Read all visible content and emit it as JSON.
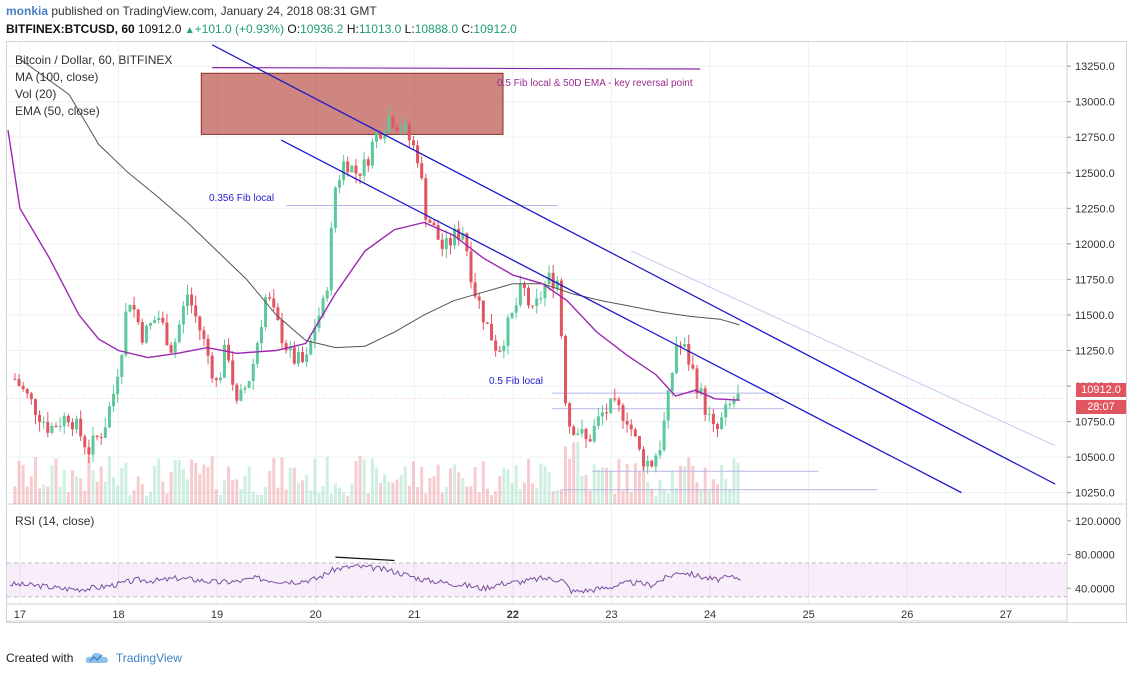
{
  "header": {
    "user": "monkia",
    "published_text": "published on TradingView.com, January 24, 2018 08:31 GMT",
    "symbol": "BITFINEX:BTCUSD, 60",
    "last": "10912.0",
    "change": "+101.0 (+0.93%)",
    "o_label": "O:",
    "o_value": "10936.2",
    "h_label": "H:",
    "h_value": "11013.0",
    "l_label": "L:",
    "l_value": "10888.0",
    "c_label": "C:",
    "c_value": "10912.0"
  },
  "legend": {
    "title": "Bitcoin / Dollar, 60, BITFINEX",
    "ma": "MA (100, close)",
    "vol": "Vol (20)",
    "ema": "EMA (50, close)",
    "rsi": "RSI (14, close)"
  },
  "annotations": {
    "zone_label": "0.5 Fib local & 50D EMA - key reversal point",
    "fib356": "0.356 Fib local",
    "fib05": "0.5 Fib local"
  },
  "price_tag": {
    "price": "10912.0",
    "timer": "28:07"
  },
  "footer": {
    "created_with": "Created with",
    "brand": "TradingView"
  },
  "colors": {
    "up": "#5cc99a",
    "down": "#e05560",
    "ema": "#9c27b0",
    "ma": "#555555",
    "trend": "#1c1ccc",
    "zone": "#b5443c",
    "rsi": "#7b4fa0"
  },
  "chart_data": {
    "type": "candlestick",
    "x_ticks": [
      "17",
      "18",
      "19",
      "20",
      "21",
      "22",
      "23",
      "24",
      "25",
      "26",
      "27"
    ],
    "y_ticks": [
      "13250.0",
      "13000.0",
      "12750.0",
      "12500.0",
      "12250.0",
      "12000.0",
      "11750.0",
      "11500.0",
      "11250.0",
      "11000.0",
      "10750.0",
      "10500.0",
      "10250.0"
    ],
    "ylim": [
      10170,
      13420
    ],
    "rsi_ticks": [
      "120.0000",
      "80.0000",
      "40.0000"
    ],
    "rsi_range": [
      0,
      140
    ],
    "rsi_band": [
      30,
      70
    ],
    "zone": {
      "x_start": 18.84,
      "x_end": 21.9,
      "y_low": 12770,
      "y_high": 13200
    },
    "trendlines": [
      {
        "x1": 18.95,
        "y1": 13400,
        "x2": 27.5,
        "y2": 10310
      },
      {
        "x1": 19.65,
        "y1": 12730,
        "x2": 26.55,
        "y2": 10250
      }
    ],
    "close_path": [
      [
        16.9,
        11100
      ],
      [
        17.1,
        10900
      ],
      [
        17.3,
        10700
      ],
      [
        17.5,
        10800
      ],
      [
        17.7,
        10550
      ],
      [
        17.85,
        10700
      ],
      [
        17.95,
        10950
      ],
      [
        18.05,
        11350
      ],
      [
        18.1,
        11650
      ],
      [
        18.25,
        11350
      ],
      [
        18.4,
        11500
      ],
      [
        18.55,
        11250
      ],
      [
        18.7,
        11650
      ],
      [
        18.85,
        11350
      ],
      [
        19.0,
        11000
      ],
      [
        19.1,
        11300
      ],
      [
        19.2,
        10850
      ],
      [
        19.35,
        11100
      ],
      [
        19.5,
        11650
      ],
      [
        19.6,
        11450
      ],
      [
        19.75,
        11200
      ],
      [
        19.9,
        11150
      ],
      [
        20.0,
        11450
      ],
      [
        20.1,
        11600
      ],
      [
        20.15,
        12000
      ],
      [
        20.2,
        12400
      ],
      [
        20.3,
        12600
      ],
      [
        20.4,
        12500
      ],
      [
        20.5,
        12550
      ],
      [
        20.6,
        12750
      ],
      [
        20.75,
        12900
      ],
      [
        20.9,
        12800
      ],
      [
        21.05,
        12600
      ],
      [
        21.1,
        12250
      ],
      [
        21.2,
        12100
      ],
      [
        21.3,
        11950
      ],
      [
        21.4,
        12050
      ],
      [
        21.5,
        12100
      ],
      [
        21.6,
        11700
      ],
      [
        21.75,
        11400
      ],
      [
        21.85,
        11250
      ],
      [
        22.0,
        11500
      ],
      [
        22.1,
        11700
      ],
      [
        22.2,
        11500
      ],
      [
        22.35,
        11750
      ],
      [
        22.45,
        11750
      ],
      [
        22.5,
        11300
      ],
      [
        22.55,
        10750
      ],
      [
        22.65,
        10700
      ],
      [
        22.75,
        10600
      ],
      [
        22.9,
        10800
      ],
      [
        23.0,
        10850
      ],
      [
        23.15,
        10800
      ],
      [
        23.3,
        10500
      ],
      [
        23.4,
        10450
      ],
      [
        23.5,
        10600
      ],
      [
        23.6,
        11000
      ],
      [
        23.65,
        11300
      ],
      [
        23.75,
        11250
      ],
      [
        23.85,
        11050
      ],
      [
        23.95,
        10850
      ],
      [
        24.05,
        10650
      ],
      [
        24.15,
        10800
      ],
      [
        24.25,
        10912
      ]
    ],
    "ema_50": [
      [
        16.88,
        12800
      ],
      [
        17.0,
        12250
      ],
      [
        17.3,
        11900
      ],
      [
        17.6,
        11500
      ],
      [
        17.8,
        11330
      ],
      [
        18.0,
        11250
      ],
      [
        18.3,
        11200
      ],
      [
        18.6,
        11230
      ],
      [
        18.9,
        11270
      ],
      [
        19.2,
        11230
      ],
      [
        19.6,
        11250
      ],
      [
        19.9,
        11300
      ],
      [
        20.2,
        11650
      ],
      [
        20.5,
        11950
      ],
      [
        20.8,
        12100
      ],
      [
        21.1,
        12150
      ],
      [
        21.4,
        12060
      ],
      [
        21.7,
        11900
      ],
      [
        22.0,
        11780
      ],
      [
        22.3,
        11720
      ],
      [
        22.55,
        11600
      ],
      [
        22.85,
        11380
      ],
      [
        23.15,
        11220
      ],
      [
        23.45,
        11080
      ],
      [
        23.65,
        10930
      ],
      [
        23.85,
        10970
      ],
      [
        24.05,
        10910
      ],
      [
        24.3,
        10900
      ]
    ],
    "ma_100": [
      [
        17.0,
        13300
      ],
      [
        17.5,
        13050
      ],
      [
        17.8,
        12700
      ],
      [
        18.1,
        12500
      ],
      [
        18.4,
        12330
      ],
      [
        18.7,
        12150
      ],
      [
        19.0,
        11950
      ],
      [
        19.3,
        11750
      ],
      [
        19.6,
        11500
      ],
      [
        19.9,
        11320
      ],
      [
        20.2,
        11270
      ],
      [
        20.5,
        11280
      ],
      [
        20.8,
        11380
      ],
      [
        21.1,
        11500
      ],
      [
        21.4,
        11600
      ],
      [
        21.7,
        11660
      ],
      [
        22.0,
        11720
      ],
      [
        22.3,
        11720
      ],
      [
        22.6,
        11650
      ],
      [
        22.9,
        11600
      ],
      [
        23.2,
        11560
      ],
      [
        23.5,
        11520
      ],
      [
        23.8,
        11490
      ],
      [
        24.1,
        11470
      ],
      [
        24.3,
        11430
      ]
    ],
    "rsi": [
      [
        16.9,
        45
      ],
      [
        17.2,
        43
      ],
      [
        17.4,
        40
      ],
      [
        17.6,
        39
      ],
      [
        17.8,
        41
      ],
      [
        18.0,
        45
      ],
      [
        18.2,
        50
      ],
      [
        18.4,
        49
      ],
      [
        18.6,
        52
      ],
      [
        18.8,
        50
      ],
      [
        19.0,
        47
      ],
      [
        19.2,
        48
      ],
      [
        19.4,
        52
      ],
      [
        19.6,
        49
      ],
      [
        19.8,
        48
      ],
      [
        20.0,
        51
      ],
      [
        20.2,
        63
      ],
      [
        20.4,
        66
      ],
      [
        20.6,
        64
      ],
      [
        20.8,
        60
      ],
      [
        20.95,
        55
      ],
      [
        21.1,
        50
      ],
      [
        21.3,
        47
      ],
      [
        21.5,
        44
      ],
      [
        21.7,
        40
      ],
      [
        21.9,
        46
      ],
      [
        22.1,
        48
      ],
      [
        22.3,
        52
      ],
      [
        22.5,
        50
      ],
      [
        22.6,
        36
      ],
      [
        22.8,
        38
      ],
      [
        23.0,
        42
      ],
      [
        23.2,
        47
      ],
      [
        23.4,
        44
      ],
      [
        23.6,
        55
      ],
      [
        23.7,
        60
      ],
      [
        23.9,
        54
      ],
      [
        24.05,
        50
      ],
      [
        24.2,
        53
      ],
      [
        24.3,
        53
      ]
    ],
    "rsi_divergence": [
      [
        20.2,
        77
      ],
      [
        20.8,
        73
      ]
    ]
  }
}
